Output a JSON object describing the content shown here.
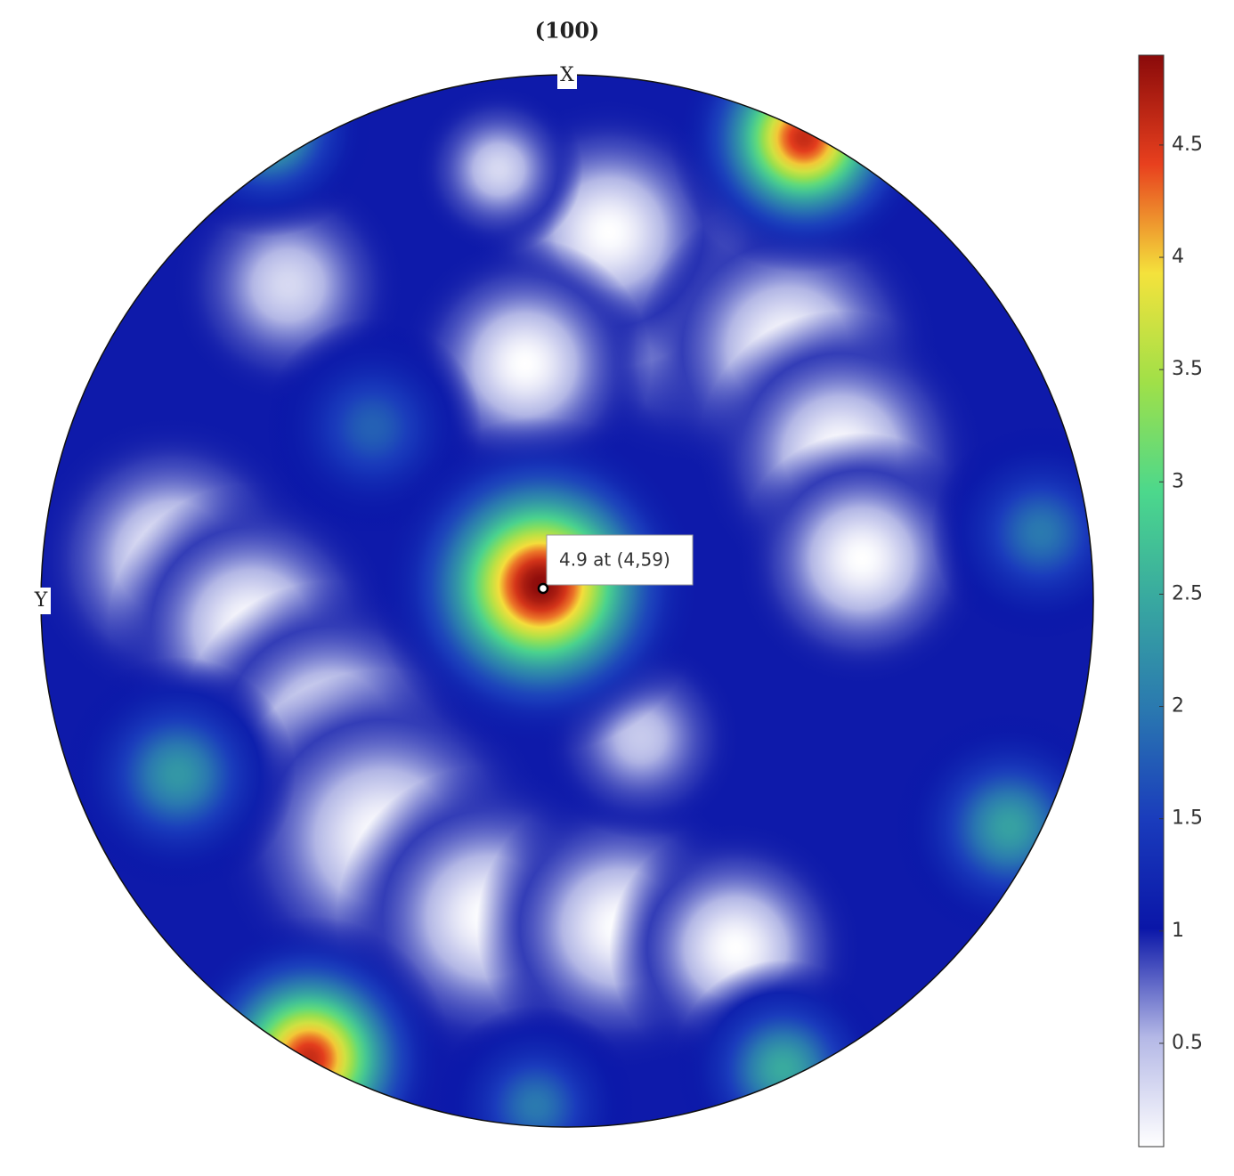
{
  "chart_data": {
    "type": "pole-figure",
    "title": "(100)",
    "x_label": "X",
    "y_label": "Y",
    "annotation": "4.9 at (4,59)",
    "background": 1.0,
    "clim": [
      0.04,
      4.9
    ],
    "cticks": [
      0.5,
      1,
      1.5,
      2,
      2.5,
      3,
      3.5,
      4,
      4.5
    ],
    "colormap": [
      "#ffffff",
      "#b4b8e6",
      "#0a16a8",
      "#1a3cbc",
      "#2a78b0",
      "#38a8a0",
      "#4cd88c",
      "#a0e048",
      "#f4e23c",
      "#e8401e",
      "#8a0a0a"
    ],
    "peaks": [
      {
        "x": 0.24,
        "y": 0.58,
        "value": 0.04,
        "width": 0.2
      },
      {
        "x": 0.08,
        "y": 0.7,
        "value": 0.04,
        "width": 0.16
      },
      {
        "x": 0.42,
        "y": 0.48,
        "value": 0.04,
        "width": 0.18
      },
      {
        "x": 0.52,
        "y": 0.28,
        "value": 0.04,
        "width": 0.17
      },
      {
        "x": 0.56,
        "y": 0.08,
        "value": 0.04,
        "width": 0.15
      },
      {
        "x": -0.08,
        "y": 0.45,
        "value": 0.04,
        "width": 0.15
      },
      {
        "x": -0.75,
        "y": 0.08,
        "value": 0.04,
        "width": 0.17
      },
      {
        "x": -0.6,
        "y": -0.05,
        "value": 0.04,
        "width": 0.17
      },
      {
        "x": -0.45,
        "y": -0.25,
        "value": 0.04,
        "width": 0.18
      },
      {
        "x": -0.35,
        "y": -0.45,
        "value": 0.04,
        "width": 0.2
      },
      {
        "x": -0.15,
        "y": -0.6,
        "value": 0.04,
        "width": 0.18
      },
      {
        "x": 0.1,
        "y": -0.62,
        "value": 0.04,
        "width": 0.17
      },
      {
        "x": 0.32,
        "y": -0.66,
        "value": 0.04,
        "width": 0.15
      },
      {
        "x": -0.53,
        "y": 0.6,
        "value": 0.3,
        "width": 0.14
      },
      {
        "x": -0.13,
        "y": 0.82,
        "value": 0.3,
        "width": 0.1
      },
      {
        "x": 0.14,
        "y": -0.26,
        "value": 0.4,
        "width": 0.12
      },
      {
        "x": -0.74,
        "y": -0.33,
        "value": 2.3,
        "width": 0.14
      },
      {
        "x": 0.84,
        "y": -0.43,
        "value": 2.4,
        "width": 0.14
      },
      {
        "x": -0.37,
        "y": 0.33,
        "value": 1.8,
        "width": 0.13
      },
      {
        "x": 0.9,
        "y": 0.13,
        "value": 2.0,
        "width": 0.13
      },
      {
        "x": -0.57,
        "y": 0.9,
        "value": 2.8,
        "width": 0.13
      },
      {
        "x": -0.06,
        "y": -0.96,
        "value": 2.0,
        "width": 0.12
      },
      {
        "x": 0.41,
        "y": -0.89,
        "value": 2.5,
        "width": 0.13
      },
      {
        "x": 0.45,
        "y": 0.88,
        "value": 4.6,
        "width": 0.16
      },
      {
        "x": -0.49,
        "y": -0.87,
        "value": 4.6,
        "width": 0.17
      },
      {
        "x": -0.05,
        "y": 0.03,
        "value": 4.9,
        "width": 0.2
      }
    ]
  }
}
